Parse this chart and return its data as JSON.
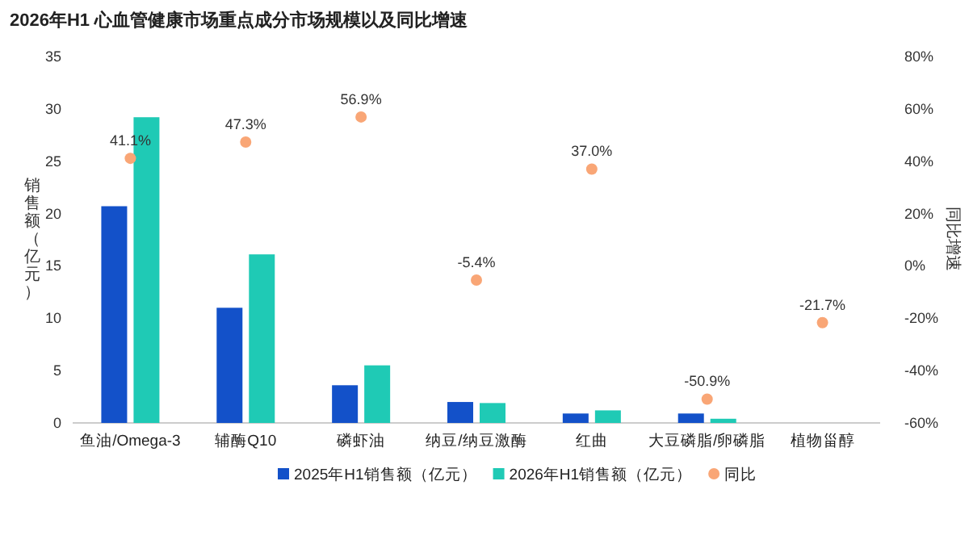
{
  "chart_data": {
    "type": "bar",
    "title": "2026年H1 心血管健康市场重点成分市场规模以及同比增速",
    "ylabel": "销售额（亿元）",
    "y2label": "同比增速",
    "categories": [
      "鱼油/Omega-3",
      "辅酶Q10",
      "磷虾油",
      "纳豆/纳豆激酶",
      "红曲",
      "大豆磷脂/卵磷脂",
      "植物甾醇"
    ],
    "series": [
      {
        "name": "2025年H1销售额（亿元）",
        "color": "#1351c9",
        "values": [
          20.7,
          11.0,
          3.6,
          2.0,
          0.9,
          0.9,
          null
        ]
      },
      {
        "name": "2026年H1销售额（亿元）",
        "color": "#1fcab5",
        "values": [
          29.2,
          16.1,
          5.5,
          1.9,
          1.2,
          0.4,
          null
        ]
      },
      {
        "name": "同比",
        "type": "scatter",
        "axis": "y2",
        "color": "#f9a676",
        "values": [
          41.1,
          47.3,
          56.9,
          -5.4,
          37.0,
          -50.9,
          -21.7
        ],
        "value_labels": [
          "41.1%",
          "47.3%",
          "56.9%",
          "-5.4%",
          "37.0%",
          "-50.9%",
          "-21.7%"
        ]
      }
    ],
    "ylim": [
      0,
      35
    ],
    "yticks": [
      0,
      5,
      10,
      15,
      20,
      25,
      30,
      35
    ],
    "y2lim": [
      -60,
      80
    ],
    "y2ticks": [
      {
        "value": -60,
        "label": "-60%"
      },
      {
        "value": -40,
        "label": "-40%"
      },
      {
        "value": -20,
        "label": "-20%"
      },
      {
        "value": 0,
        "label": "0%"
      },
      {
        "value": 20,
        "label": "20%"
      },
      {
        "value": 40,
        "label": "40%"
      },
      {
        "value": 60,
        "label": "60%"
      },
      {
        "value": 80,
        "label": "80%"
      }
    ],
    "grid": false,
    "legend": "bottom",
    "marker": "circle"
  }
}
